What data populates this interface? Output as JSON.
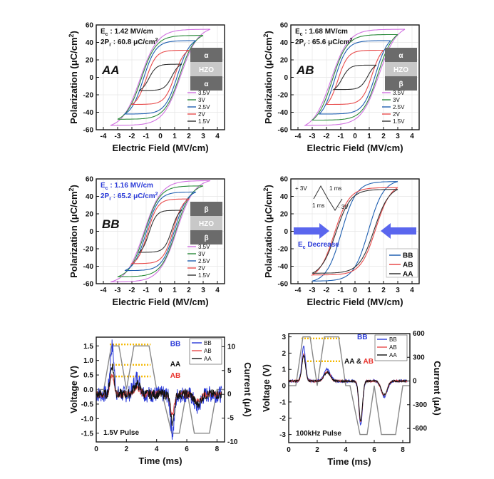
{
  "hysteresis_panels": [
    {
      "id": "AA",
      "sample": "AA",
      "ec": "E",
      "ec_sub": "c",
      "ec_val": " : 1.42 MV/cm",
      "pr": "2P",
      "pr_sub": "r",
      "pr_val": " : 60.8 μC/cm",
      "pr_sup": "2",
      "ann_color": "#111111",
      "inset": [
        "α",
        "HZO",
        "α"
      ],
      "inset_colors": [
        "#e8302a",
        "#ffffff",
        "#e8302a"
      ],
      "legend": [
        "3.5V",
        "3V",
        "2.5V",
        "2V",
        "1.5V"
      ],
      "legend_colors": [
        "#d070e0",
        "#2a8a3a",
        "#1f5fb0",
        "#e84b4b",
        "#333333"
      ]
    },
    {
      "id": "AB",
      "sample": "AB",
      "ec": "E",
      "ec_sub": "c",
      "ec_val": " : 1.68 MV/cm",
      "pr": "2P",
      "pr_sub": "r",
      "pr_val": " : 65.6 μC/cm",
      "pr_sup": "2",
      "ann_color": "#111111",
      "inset": [
        "α",
        "HZO",
        "β"
      ],
      "inset_colors": [
        "#e8302a",
        "#ffffff",
        "#2a3ad8"
      ],
      "legend": [
        "3.5V",
        "3V",
        "2.5V",
        "2V",
        "1.5V"
      ],
      "legend_colors": [
        "#d070e0",
        "#2a8a3a",
        "#1f5fb0",
        "#e84b4b",
        "#333333"
      ]
    },
    {
      "id": "BB",
      "sample": "BB",
      "ec": "E",
      "ec_sub": "c",
      "ec_val": " : 1.16 MV/cm",
      "pr": "2P",
      "pr_sub": "r",
      "pr_val": " : 65.2 μC/cm",
      "pr_sup": "2",
      "ann_color": "#2a3ad8",
      "inset": [
        "β",
        "HZO",
        "β"
      ],
      "inset_colors": [
        "#2a3ad8",
        "#ffffff",
        "#2a3ad8"
      ],
      "legend": [
        "3.5V",
        "3V",
        "2.5V",
        "2V",
        "1.5V"
      ],
      "legend_colors": [
        "#d070e0",
        "#2a8a3a",
        "#1f5fb0",
        "#e84b4b",
        "#333333"
      ]
    }
  ],
  "comparison_panel": {
    "pulse_top_left": "+ 3V",
    "pulse_top_right": "1 ms",
    "pulse_bottom_left": "1 ms",
    "pulse_bottom_right": "- 3V",
    "ec_label": "E",
    "ec_sub": "c",
    "ec_rest": " Decrease",
    "legend": [
      "BB",
      "AB",
      "AA"
    ],
    "legend_colors": [
      "#1f5fb0",
      "#e84b4b",
      "#333333"
    ]
  },
  "pulse_panels": [
    {
      "id": "p15",
      "title": "1.5V Pulse",
      "labels": [
        {
          "text": "BB",
          "color": "#2a3ad8"
        },
        {
          "text": "AA",
          "color": "#111111"
        },
        {
          "text": "AB",
          "color": "#e8302a"
        }
      ],
      "legend": [
        "BB",
        "AB",
        "AA"
      ],
      "legend_colors": [
        "#2a3ad8",
        "#e84b4b",
        "#111111"
      ],
      "left_label": "Voltage (V)",
      "right_label": "Current (μA)",
      "x_label": "Time (ms)"
    },
    {
      "id": "p100k",
      "title": "100kHz Pulse",
      "labels": [
        {
          "text": "BB",
          "color": "#2a3ad8"
        },
        {
          "text": "AA & ",
          "color": "#111111"
        },
        {
          "text": "AB",
          "color": "#e8302a"
        }
      ],
      "legend": [
        "BB",
        "AB",
        "AA"
      ],
      "legend_colors": [
        "#2a3ad8",
        "#e84b4b",
        "#111111"
      ],
      "left_label": "Voltage (V)",
      "right_label": "Current (μA)",
      "x_label": "Time (ms)"
    }
  ],
  "axis_text": {
    "x_label": "Electric Field (MV/cm)",
    "y_label": "Polarization (μC/cm",
    "y_label_sup": "2",
    "y_label_end": ")"
  },
  "chart_data": [
    {
      "type": "line",
      "panel": "AA",
      "xlabel": "Electric Field (MV/cm)",
      "ylabel": "Polarization (μC/cm²)",
      "xlim": [
        -4.5,
        4.5
      ],
      "ylim": [
        -60,
        60
      ],
      "xticks": [
        -4,
        -3,
        -2,
        -1,
        0,
        1,
        2,
        3,
        4
      ],
      "yticks": [
        -60,
        -40,
        -20,
        0,
        20,
        40,
        60
      ],
      "series": [
        {
          "name": "3.5V",
          "color": "#d070e0",
          "vmax": 3.5,
          "pmax": 55,
          "pr": 30.4,
          "ec": 1.42
        },
        {
          "name": "3V",
          "color": "#2a8a3a",
          "vmax": 3.0,
          "pmax": 48,
          "pr": 28,
          "ec": 1.35
        },
        {
          "name": "2.5V",
          "color": "#1f5fb0",
          "vmax": 2.5,
          "pmax": 42,
          "pr": 25,
          "ec": 1.2
        },
        {
          "name": "2V",
          "color": "#e84b4b",
          "vmax": 2.0,
          "pmax": 31,
          "pr": 13,
          "ec": 1.0
        },
        {
          "name": "1.5V",
          "color": "#333333",
          "vmax": 1.5,
          "pmax": 15,
          "pr": 3,
          "ec": 0.8
        }
      ]
    },
    {
      "type": "line",
      "panel": "AB",
      "xlabel": "Electric Field (MV/cm)",
      "ylabel": "Polarization (μC/cm²)",
      "xlim": [
        -4.5,
        4.5
      ],
      "ylim": [
        -60,
        60
      ],
      "xticks": [
        -4,
        -3,
        -2,
        -1,
        0,
        1,
        2,
        3,
        4
      ],
      "yticks": [
        -60,
        -40,
        -20,
        0,
        20,
        40,
        60
      ],
      "series": [
        {
          "name": "3.5V",
          "color": "#d070e0",
          "vmax": 3.5,
          "pmax": 55,
          "pr": 32.8,
          "ec": 1.68
        },
        {
          "name": "3V",
          "color": "#2a8a3a",
          "vmax": 3.0,
          "pmax": 49,
          "pr": 30,
          "ec": 1.6
        },
        {
          "name": "2.5V",
          "color": "#1f5fb0",
          "vmax": 2.5,
          "pmax": 42,
          "pr": 26,
          "ec": 1.45
        },
        {
          "name": "2V",
          "color": "#e84b4b",
          "vmax": 2.0,
          "pmax": 31,
          "pr": 12,
          "ec": 1.2
        },
        {
          "name": "1.5V",
          "color": "#333333",
          "vmax": 1.5,
          "pmax": 14,
          "pr": 3,
          "ec": 0.9
        }
      ]
    },
    {
      "type": "line",
      "panel": "BB",
      "xlabel": "Electric Field (MV/cm)",
      "ylabel": "Polarization (μC/cm²)",
      "xlim": [
        -4.5,
        4.5
      ],
      "ylim": [
        -60,
        60
      ],
      "xticks": [
        -4,
        -3,
        -2,
        -1,
        0,
        1,
        2,
        3,
        4
      ],
      "yticks": [
        -60,
        -40,
        -20,
        0,
        20,
        40,
        60
      ],
      "series": [
        {
          "name": "3.5V",
          "color": "#d070e0",
          "vmax": 3.5,
          "pmax": 58,
          "pr": 32.6,
          "ec": 1.16
        },
        {
          "name": "3V",
          "color": "#2a8a3a",
          "vmax": 3.0,
          "pmax": 52,
          "pr": 30,
          "ec": 1.1
        },
        {
          "name": "2.5V",
          "color": "#1f5fb0",
          "vmax": 2.5,
          "pmax": 45,
          "pr": 27,
          "ec": 1.0
        },
        {
          "name": "2V",
          "color": "#e84b4b",
          "vmax": 2.0,
          "pmax": 37,
          "pr": 22,
          "ec": 0.9
        },
        {
          "name": "1.5V",
          "color": "#333333",
          "vmax": 1.5,
          "pmax": 24,
          "pr": 8,
          "ec": 0.8
        }
      ]
    },
    {
      "type": "line",
      "panel": "comparison",
      "xlabel": "Electric Field (MV/cm)",
      "ylabel": "Polarization (μC/cm²)",
      "xlim": [
        -4.5,
        4.5
      ],
      "ylim": [
        -60,
        60
      ],
      "xticks": [
        -4,
        -3,
        -2,
        -1,
        0,
        1,
        2,
        3,
        4
      ],
      "yticks": [
        -60,
        -40,
        -20,
        0,
        20,
        40,
        60
      ],
      "series": [
        {
          "name": "BB",
          "color": "#1f5fb0",
          "vmax": 3.0,
          "pmax": 57,
          "pr": 30,
          "ec": 0.95
        },
        {
          "name": "AB",
          "color": "#e84b4b",
          "vmax": 3.0,
          "pmax": 50,
          "pr": 28,
          "ec": 1.45
        },
        {
          "name": "AA",
          "color": "#333333",
          "vmax": 3.0,
          "pmax": 48,
          "pr": 27,
          "ec": 1.35
        }
      ]
    },
    {
      "type": "line",
      "panel": "1.5V Pulse",
      "xlabel": "Time (ms)",
      "ylabel": "Voltage (V)",
      "y2label": "Current (μA)",
      "xlim": [
        0,
        8.5
      ],
      "ylim": [
        -1.8,
        1.8
      ],
      "y2lim": [
        -10,
        12
      ],
      "xticks": [
        0,
        2,
        4,
        6,
        8
      ],
      "yticks": [
        -1.5,
        -1.0,
        -0.5,
        0.0,
        0.5,
        1.0,
        1.5
      ],
      "y2ticks": [
        -10,
        -5,
        0,
        5,
        10
      ],
      "voltage_amplitude": 1.5,
      "voltage_trace": [
        [
          0,
          0
        ],
        [
          0.5,
          0
        ],
        [
          1,
          1.5
        ],
        [
          1.5,
          1.5
        ],
        [
          2,
          0
        ],
        [
          2.5,
          1.5
        ],
        [
          3.5,
          1.5
        ],
        [
          4,
          0
        ],
        [
          4.3,
          0
        ],
        [
          5,
          -1.5
        ],
        [
          5.5,
          -1.5
        ],
        [
          6,
          0
        ],
        [
          6.5,
          -1.5
        ],
        [
          7.5,
          -1.5
        ],
        [
          8,
          0
        ],
        [
          8.5,
          0
        ]
      ],
      "current_peaks": [
        {
          "name": "BB",
          "color": "#2a3ad8",
          "peak": 10,
          "neg_peak": -8
        },
        {
          "name": "AB",
          "color": "#e84b4b",
          "peak": 4,
          "neg_peak": -4
        },
        {
          "name": "AA",
          "color": "#111111",
          "peak": 6,
          "neg_peak": -6
        }
      ],
      "reference_levels": [
        {
          "name": "BB",
          "value": 1.55
        },
        {
          "name": "AA",
          "value": 0.85
        },
        {
          "name": "AB",
          "value": 0.45
        }
      ]
    },
    {
      "type": "line",
      "panel": "100kHz Pulse",
      "xlabel": "Time (ms)",
      "ylabel": "Voltage (V)",
      "y2label": "Current (μA)",
      "xlim": [
        0,
        8.5
      ],
      "ylim": [
        -3.5,
        3.2
      ],
      "y2lim": [
        -780,
        600
      ],
      "xticks": [
        0,
        2,
        4,
        6,
        8
      ],
      "yticks": [
        -3,
        -2,
        -1,
        0,
        1,
        2,
        3
      ],
      "y2ticks": [
        -600,
        -300,
        0,
        300,
        600
      ],
      "voltage_amplitude": 3,
      "voltage_trace": [
        [
          0,
          0
        ],
        [
          0.5,
          0
        ],
        [
          1,
          3
        ],
        [
          1.5,
          3
        ],
        [
          2,
          0
        ],
        [
          2.5,
          3
        ],
        [
          3.5,
          3
        ],
        [
          4,
          0
        ],
        [
          4.3,
          0
        ],
        [
          5,
          -3
        ],
        [
          5.5,
          -3
        ],
        [
          6,
          0
        ],
        [
          6.5,
          -3
        ],
        [
          7.5,
          -3
        ],
        [
          8,
          0
        ],
        [
          8.5,
          0
        ]
      ],
      "current_peaks": [
        {
          "name": "BB",
          "color": "#2a3ad8",
          "peak": 430,
          "neg_peak": -560
        },
        {
          "name": "AB",
          "color": "#e84b4b",
          "peak": 330,
          "neg_peak": -520
        },
        {
          "name": "AA",
          "color": "#111111",
          "peak": 320,
          "neg_peak": -500
        }
      ],
      "reference_levels": [
        {
          "name": "BB",
          "value": 2.9
        },
        {
          "name": "AA & AB",
          "value": 1.5
        }
      ]
    }
  ]
}
